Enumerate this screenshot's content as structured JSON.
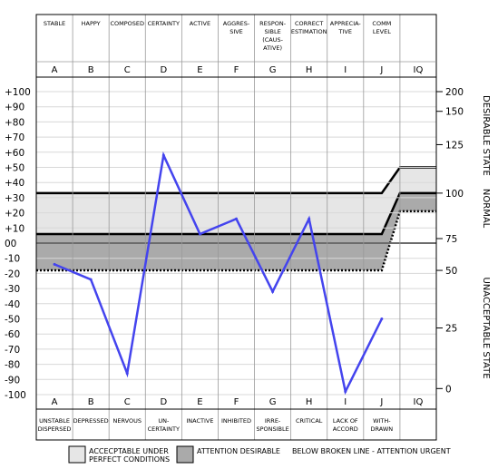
{
  "chart_data": {
    "type": "line",
    "columns": [
      {
        "letter": "A",
        "top": [
          "STABLE"
        ],
        "bottom": [
          "UNSTABLE",
          "DISPERSED"
        ]
      },
      {
        "letter": "B",
        "top": [
          "HAPPY"
        ],
        "bottom": [
          "DEPRESSED"
        ]
      },
      {
        "letter": "C",
        "top": [
          "COMPOSED"
        ],
        "bottom": [
          "NERVOUS"
        ]
      },
      {
        "letter": "D",
        "top": [
          "CERTAINTY"
        ],
        "bottom": [
          "UN-",
          "CERTAINTY"
        ]
      },
      {
        "letter": "E",
        "top": [
          "ACTIVE"
        ],
        "bottom": [
          "INACTIVE"
        ]
      },
      {
        "letter": "F",
        "top": [
          "AGGRES-",
          "SIVE"
        ],
        "bottom": [
          "INHIBITED"
        ]
      },
      {
        "letter": "G",
        "top": [
          "RESPON-",
          "SIBLE",
          "(CAUS-",
          "ATIVE)"
        ],
        "bottom": [
          "IRRE-",
          "SPONSIBLE"
        ]
      },
      {
        "letter": "H",
        "top": [
          "CORRECT",
          "ESTIMATION"
        ],
        "bottom": [
          "CRITICAL"
        ]
      },
      {
        "letter": "I",
        "top": [
          "APPRECIA-",
          "TIVE"
        ],
        "bottom": [
          "LACK OF",
          "ACCORD"
        ]
      },
      {
        "letter": "J",
        "top": [
          "COMM",
          "LEVEL"
        ],
        "bottom": [
          "WITH-",
          "DRAWN"
        ]
      },
      {
        "letter": "IQ",
        "top": [],
        "bottom": []
      }
    ],
    "y_ticks": [
      "+100",
      "+90",
      "+80",
      "+70",
      "+60",
      "+50",
      "+40",
      "+30",
      "+20",
      "+10",
      "00",
      "-10",
      "-20",
      "-30",
      "-40",
      "-50",
      "-60",
      "-70",
      "-80",
      "-90",
      "-100"
    ],
    "ylim": [
      -100,
      100
    ],
    "iq_ticks": [
      {
        "label": "200",
        "y": 100
      },
      {
        "label": "150",
        "y": 87
      },
      {
        "label": "125",
        "y": 65
      },
      {
        "label": "100",
        "y": 33
      },
      {
        "label": "75",
        "y": 3
      },
      {
        "label": "50",
        "y": -18
      },
      {
        "label": "25",
        "y": -56
      },
      {
        "label": "0",
        "y": -96
      }
    ],
    "right_labels": {
      "desirable": "DESIRABLE STATE",
      "normal": "NORMAL",
      "unacceptable": "UNACCEPTABLE STATE"
    },
    "series": [
      {
        "color": "#4444ee",
        "values": [
          -14,
          -24,
          -86,
          58,
          6,
          16,
          -32,
          16,
          -98,
          -50
        ]
      }
    ],
    "bands": {
      "light_top": 33,
      "dark_top": 6,
      "zero": 0,
      "dashed": -18,
      "iq_light_top": 50,
      "iq_dark_top": 33,
      "iq_dashed": 21
    },
    "grid": true,
    "legend": {
      "items": [
        {
          "label": "ACCECPTABLE UNDER PERFECT CONDITIONS",
          "lines": [
            "ACCECPTABLE UNDER",
            "PERFECT CONDITIONS"
          ],
          "color": "#e6e6e6"
        },
        {
          "label": "ATTENTION DESIRABLE",
          "lines": [
            "ATTENTION DESIRABLE"
          ],
          "color": "#aaaaaa"
        }
      ],
      "note": "BELOW BROKEN LINE - ATTENTION URGENT"
    },
    "colors": {
      "light_band": "#e6e6e6",
      "dark_band": "#aaaaaa",
      "line": "#4444ee",
      "grid": "#d8d8d8"
    }
  }
}
